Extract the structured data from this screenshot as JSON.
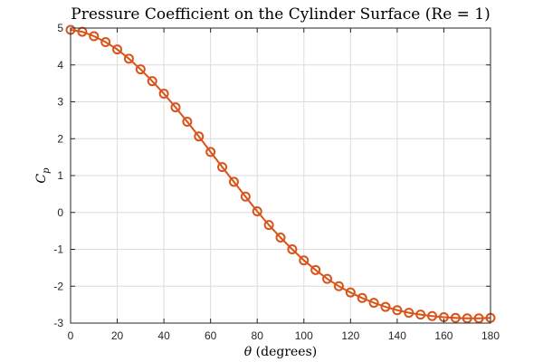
{
  "chart_data": {
    "type": "line",
    "title": "Pressure Coefficient on the Cylinder Surface (Re = 1)",
    "xlabel_math": "θ",
    "xlabel_text": " (degrees)",
    "ylabel_main": "C",
    "ylabel_sub": "p",
    "xlim": [
      0,
      180
    ],
    "ylim": [
      -3,
      5
    ],
    "xticks": [
      0,
      20,
      40,
      60,
      80,
      100,
      120,
      140,
      160,
      180
    ],
    "yticks": [
      -3,
      -2,
      -1,
      0,
      1,
      2,
      3,
      4,
      5
    ],
    "grid": true,
    "marker": "circle",
    "series": [
      {
        "color": "#d95319",
        "x": [
          0,
          5,
          10,
          15,
          20,
          25,
          30,
          35,
          40,
          45,
          50,
          55,
          60,
          65,
          70,
          75,
          80,
          85,
          90,
          95,
          100,
          105,
          110,
          115,
          120,
          125,
          130,
          135,
          140,
          145,
          150,
          155,
          160,
          165,
          170,
          175,
          180
        ],
        "y": [
          4.95,
          4.9,
          4.78,
          4.62,
          4.42,
          4.17,
          3.88,
          3.56,
          3.22,
          2.85,
          2.46,
          2.06,
          1.64,
          1.23,
          0.83,
          0.43,
          0.03,
          -0.34,
          -0.68,
          -1.0,
          -1.3,
          -1.56,
          -1.8,
          -2.0,
          -2.17,
          -2.32,
          -2.45,
          -2.56,
          -2.65,
          -2.72,
          -2.77,
          -2.81,
          -2.84,
          -2.86,
          -2.87,
          -2.87,
          -2.86
        ]
      }
    ]
  }
}
